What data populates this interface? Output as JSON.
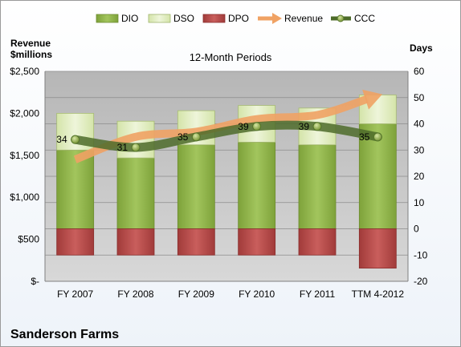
{
  "chart_data": {
    "type": "bar",
    "title": "12-Month Periods",
    "company": "Sanderson Farms",
    "y_left_label_line1": "Revenue",
    "y_left_label_line2": "$millions",
    "y_right_label": "Days",
    "categories": [
      "FY 2007",
      "FY 2008",
      "FY 2009",
      "FY 2010",
      "FY 2011",
      "TTM 4-2012"
    ],
    "ylim_right": [
      -20,
      60
    ],
    "ylim_left": [
      0,
      2500
    ],
    "right_ticks": [
      -20,
      -10,
      0,
      10,
      20,
      30,
      40,
      50,
      60
    ],
    "left_ticks": [
      "$-",
      "$500",
      "$1,000",
      "$1,500",
      "$2,000",
      "$2,500"
    ],
    "grid": true,
    "legend_position": "top",
    "legend": [
      "DIO",
      "DSO",
      "DPO",
      "Revenue",
      "CCC"
    ],
    "series": [
      {
        "name": "DIO",
        "axis": "right",
        "color": "#8fb44a",
        "values": [
          30,
          27,
          32,
          33,
          32,
          40
        ]
      },
      {
        "name": "DSO",
        "axis": "right",
        "color": "#e1edc3",
        "values": [
          14,
          14,
          13,
          14,
          14,
          11
        ]
      },
      {
        "name": "DPO",
        "axis": "right",
        "color": "#b84a49",
        "values": [
          -10,
          -10,
          -10,
          -10,
          -10,
          -15
        ]
      },
      {
        "name": "Revenue",
        "axis": "left",
        "color": "#f0a264",
        "values": [
          1450,
          1720,
          1780,
          1930,
          1980,
          2210
        ]
      },
      {
        "name": "CCC",
        "axis": "right",
        "color": "#4d6b2a",
        "values": [
          34,
          31,
          35,
          39,
          39,
          35
        ]
      }
    ],
    "ccc_labels": [
      "34",
      "31",
      "35",
      "39",
      "39",
      "35"
    ]
  }
}
